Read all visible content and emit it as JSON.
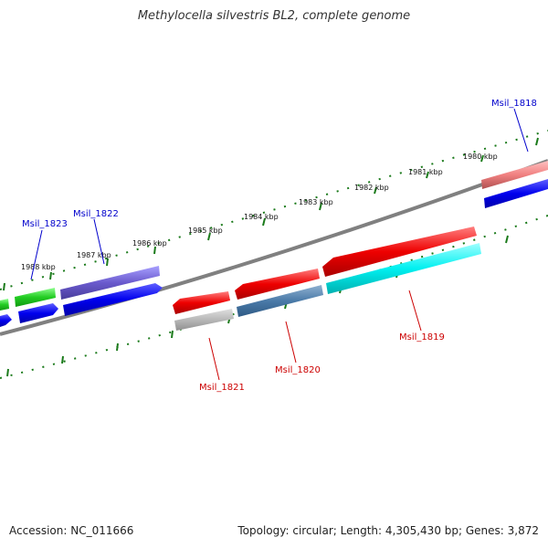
{
  "header": {
    "title": "Methylocella silvestris BL2, complete genome"
  },
  "footer": {
    "accession": "Accession: NC_011666",
    "topology": "Topology: circular; Length: 4,305,430 bp; Genes: 3,872"
  },
  "ruler_labels": [
    "1980 kbp",
    "1981 kbp",
    "1982 kbp",
    "1983 kbp",
    "1984 kbp",
    "1985 kbp",
    "1986 kbp",
    "1987 kbp",
    "1988 kbp"
  ],
  "gene_labels": {
    "msil_1818": "Msil_1818",
    "msil_1819": "Msil_1819",
    "msil_1820": "Msil_1820",
    "msil_1821": "Msil_1821",
    "msil_1822": "Msil_1822",
    "msil_1823": "Msil_1823"
  },
  "colors": {
    "forward_label": "#0000cc",
    "reverse_label": "#cc0000",
    "tick": "#1a7a1a",
    "backbone": "#808080"
  }
}
